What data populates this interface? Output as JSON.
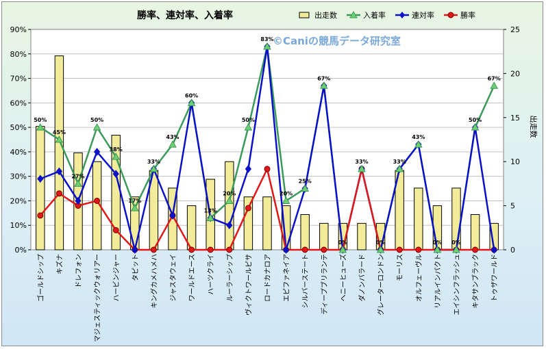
{
  "chart_data": {
    "type": "bar+line",
    "title": "勝率、連対率、入着率",
    "watermark": "©Caniの競馬データ研究室",
    "y2label": "出走数",
    "ylim": [
      0,
      90
    ],
    "y2lim": [
      0,
      25
    ],
    "yticks": [
      "0%",
      "10%",
      "20%",
      "30%",
      "40%",
      "50%",
      "60%",
      "70%",
      "80%",
      "90%"
    ],
    "y2ticks": [
      "0",
      "5",
      "10",
      "15",
      "20",
      "25"
    ],
    "legend_position": "top",
    "categories": [
      "ゴールドシップ",
      "キズナ",
      "ドレフォン",
      "マジェスティックウォリアー",
      "ハービンジャー",
      "タピット",
      "キングカメハメハ",
      "ジャスタウェイ",
      "ワールドエース",
      "ハーツクライ",
      "ルーラーシップ",
      "ヴィクトワールピサ",
      "ロードカナロア",
      "エピファネイア",
      "シルバーステート",
      "ディープブリランテ",
      "ヘニーヒューズ",
      "ダノンバラード",
      "グレーターロンドン",
      "モーリス",
      "オルフェーヴル",
      "リアルインパクト",
      "エイシンフラッシュ",
      "キタサンブラック",
      "トゥザワールド"
    ],
    "series": [
      {
        "name": "出走数",
        "type": "bar",
        "color": "#f2eb9a",
        "axis": "right",
        "values": [
          14,
          22,
          11,
          10,
          13,
          6,
          9,
          7,
          5,
          8,
          10,
          6,
          6,
          5,
          4,
          3,
          3,
          3,
          3,
          9,
          7,
          5,
          7,
          4,
          3
        ]
      },
      {
        "name": "入着率",
        "type": "line",
        "color": "#3a9a5a",
        "marker": "triangle",
        "axis": "left",
        "values": [
          50,
          45,
          27,
          50,
          38,
          17,
          33,
          43,
          60,
          13,
          20,
          50,
          83,
          20,
          25,
          67,
          0,
          33,
          0,
          33,
          43,
          0,
          0,
          50,
          67
        ]
      },
      {
        "name": "連対率",
        "type": "line",
        "color": "#0b11c8",
        "marker": "diamond",
        "axis": "left",
        "values": [
          29,
          32,
          20,
          40,
          31,
          0,
          33,
          14,
          60,
          13,
          10,
          33,
          83,
          0,
          25,
          67,
          0,
          33,
          0,
          33,
          43,
          0,
          0,
          50,
          0
        ]
      },
      {
        "name": "勝率",
        "type": "line",
        "color": "#e01818",
        "marker": "circle",
        "axis": "left",
        "values": [
          14,
          23,
          18,
          20,
          8,
          0,
          0,
          14,
          0,
          0,
          0,
          17,
          33,
          0,
          0,
          0,
          0,
          33,
          0,
          0,
          0,
          0,
          0,
          0,
          0
        ]
      }
    ],
    "data_labels": [
      "50%",
      "45%",
      "27%",
      "50%",
      "38%",
      "17%",
      "33%",
      "43%",
      "60%",
      "13%",
      "20%",
      "50%",
      "83%",
      "20%",
      "25%",
      "67%",
      "0%",
      "33%",
      "0%",
      "33%",
      "43%",
      "0%",
      "0%",
      "50%",
      "67%"
    ]
  }
}
